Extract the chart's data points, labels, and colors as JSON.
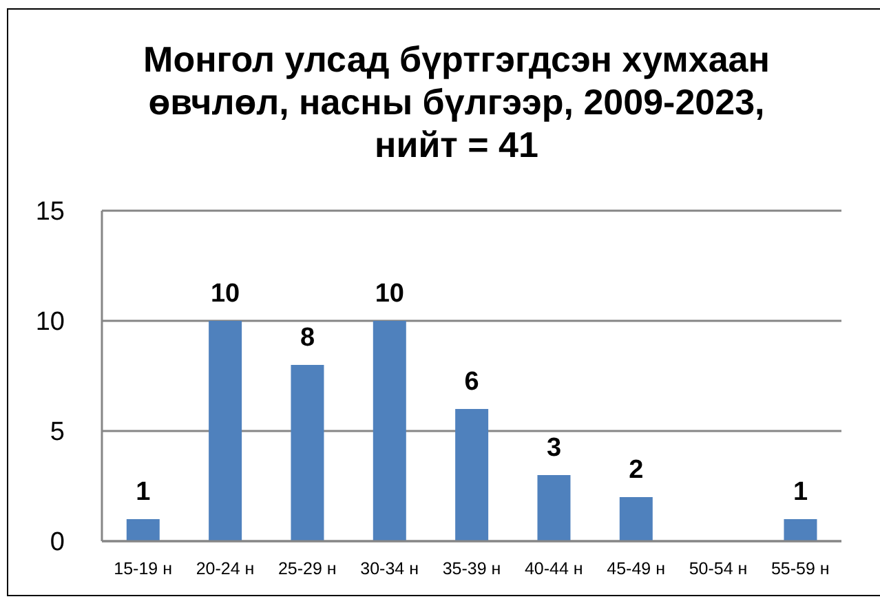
{
  "chart_data": {
    "type": "bar",
    "title": "Монгол улсад бүртгэгдсэн хумхаан өвчлөл, насны бүлгээр, 2009-2023, нийт = 41",
    "categories": [
      "15-19 н",
      "20-24 н",
      "25-29 н",
      "30-34 н",
      "35-39 н",
      "40-44 н",
      "45-49 н",
      "50-54 н",
      "55-59 н"
    ],
    "values": [
      1,
      10,
      8,
      10,
      6,
      3,
      2,
      0,
      1
    ],
    "value_labels": [
      "1",
      "10",
      "8",
      "10",
      "6",
      "3",
      "2",
      null,
      "1"
    ],
    "color": "#4f81bd",
    "ylim": [
      0,
      15
    ],
    "yticks": [
      0,
      5,
      10,
      15
    ],
    "grid": "y"
  }
}
